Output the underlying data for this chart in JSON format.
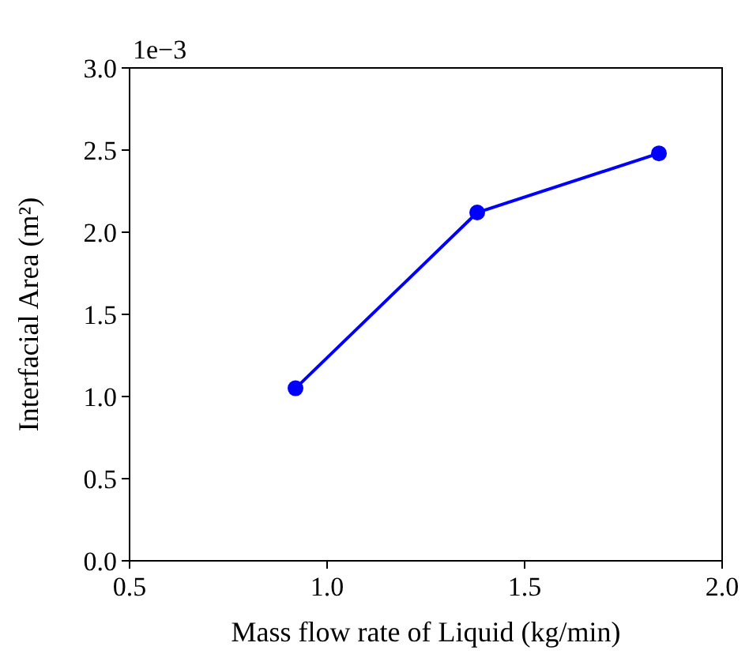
{
  "chart_data": {
    "type": "line",
    "xlabel": "Mass flow rate of Liquid (kg/min)",
    "ylabel": "Interfacial Area (m²)",
    "x": [
      0.92,
      1.38,
      1.84
    ],
    "series": [
      {
        "color": "#0000ff",
        "values": [
          1.05,
          2.12,
          2.48
        ]
      }
    ],
    "xlim": [
      0.5,
      2.0
    ],
    "xticks": [
      {
        "value": 0.5,
        "label": "0.5"
      },
      {
        "value": 1.0,
        "label": "1.0"
      },
      {
        "value": 1.5,
        "label": "1.5"
      },
      {
        "value": 2.0,
        "label": "2.0"
      }
    ],
    "ylim": [
      0,
      3.0
    ],
    "yticks": [
      {
        "value": 0,
        "label": "0.0"
      },
      {
        "value": 0.5,
        "label": "0.5"
      },
      {
        "value": 1.0,
        "label": "1.0"
      },
      {
        "value": 1.5,
        "label": "1.5"
      },
      {
        "value": 2.0,
        "label": "2.0"
      },
      {
        "value": 2.5,
        "label": "2.5"
      },
      {
        "value": 3.0,
        "label": "3.0"
      }
    ],
    "annotations": [
      "1e−3"
    ],
    "marker": "circle",
    "line_style": "solid"
  }
}
